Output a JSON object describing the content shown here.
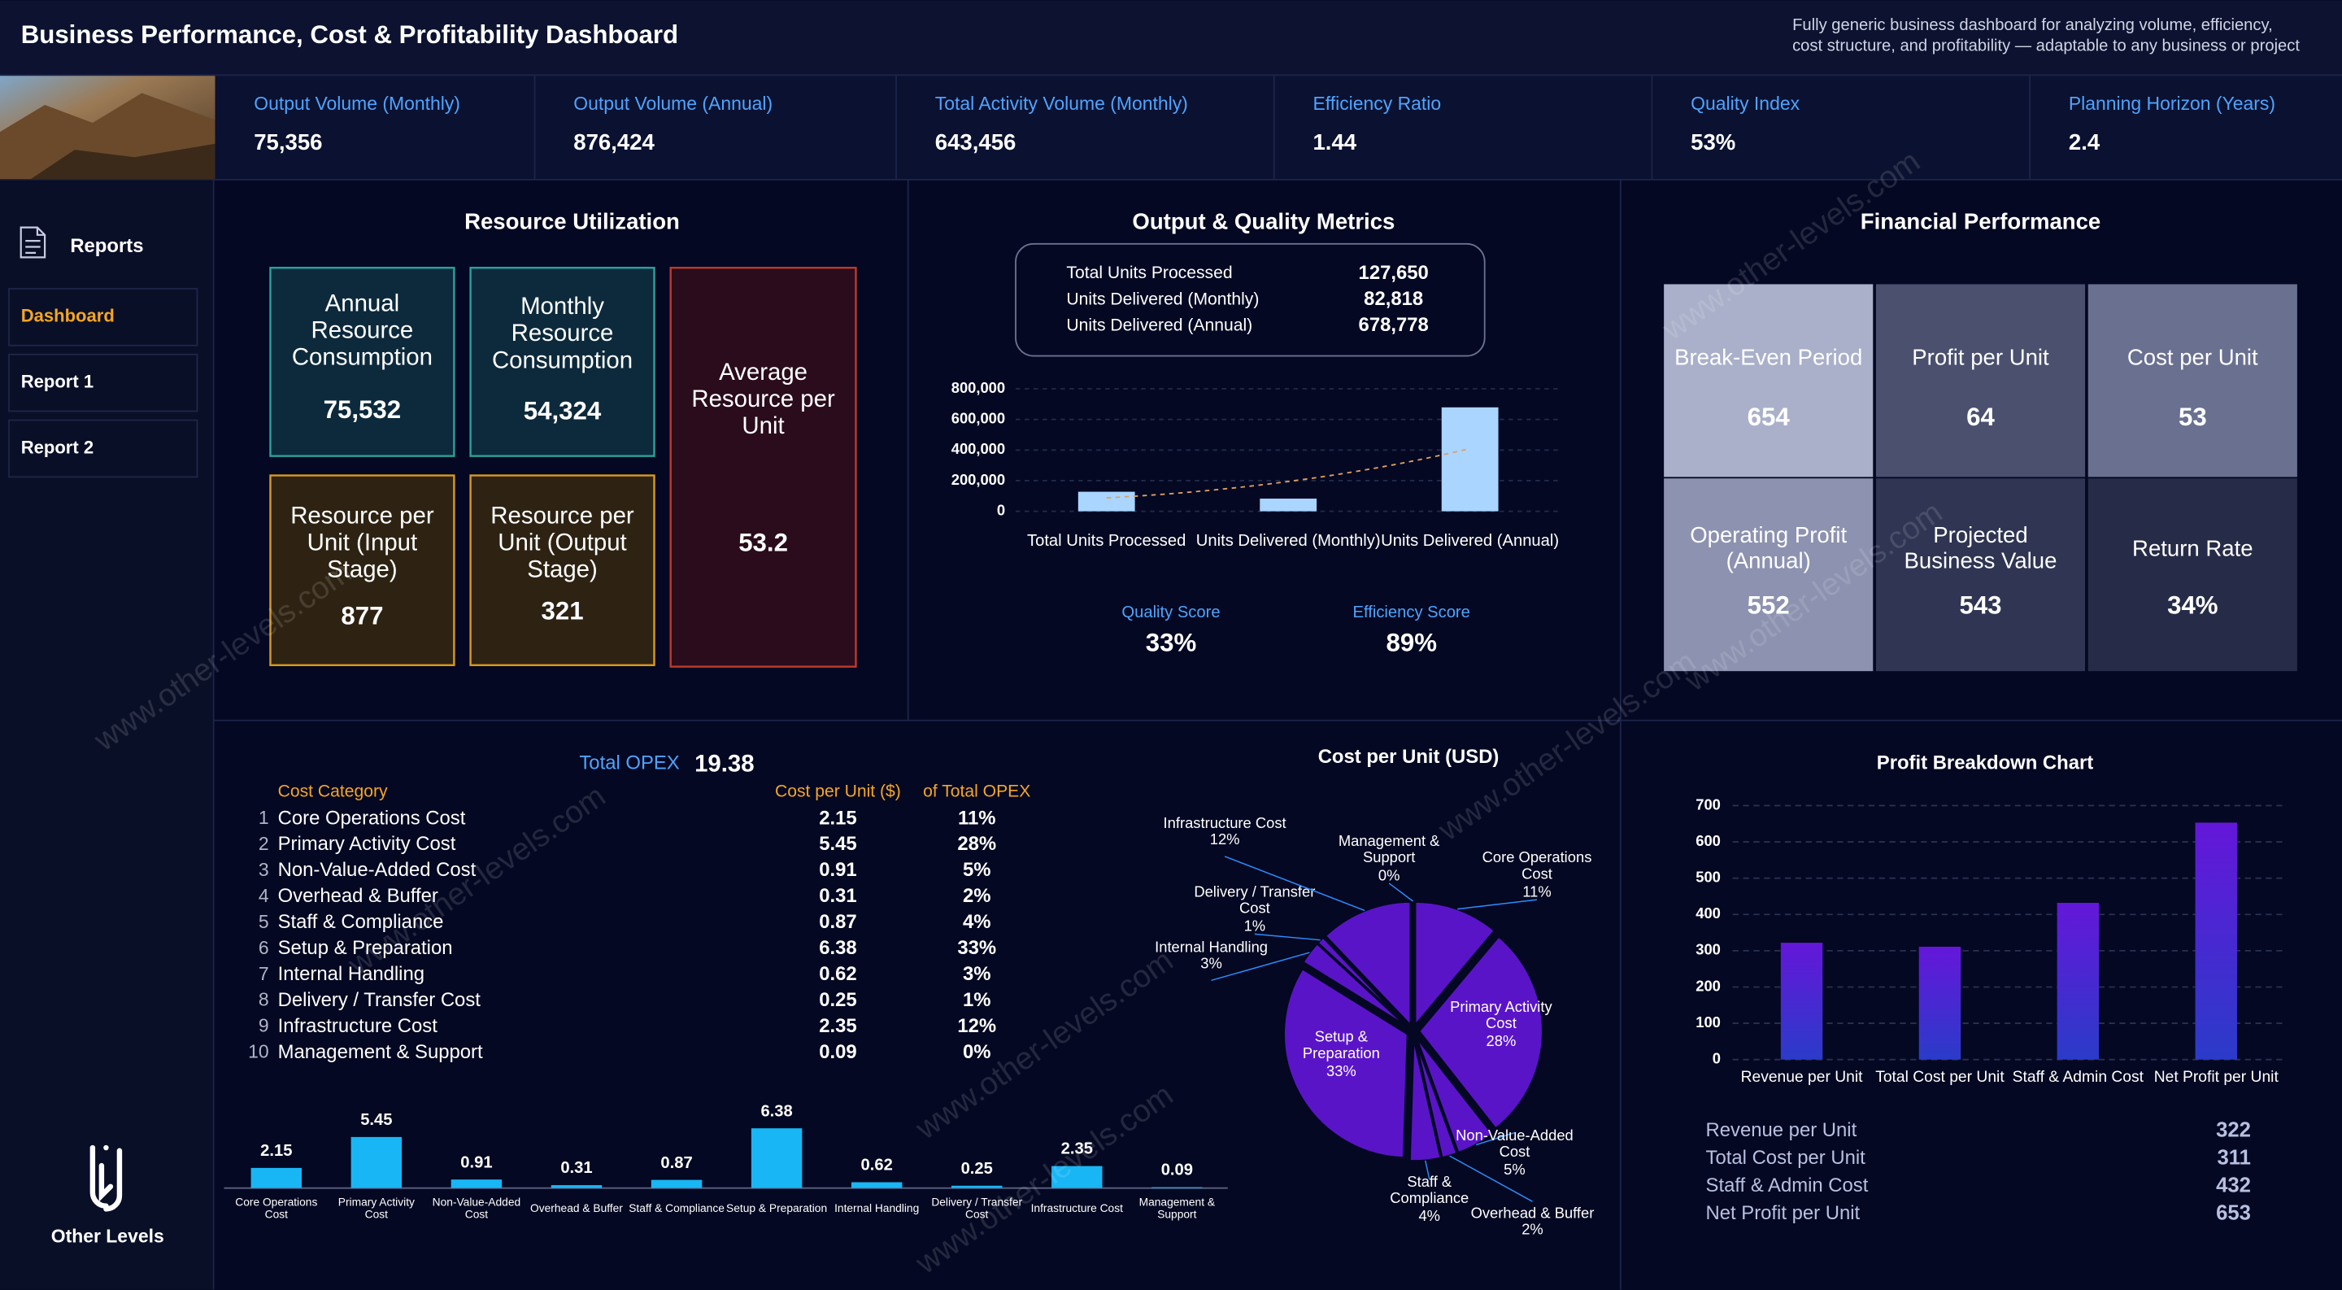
{
  "header": {
    "title": "Business Performance, Cost & Profitability Dashboard",
    "subtitle": [
      "Fully generic business dashboard for analyzing volume, efficiency,",
      "cost structure, and profitability — adaptable to any business or project"
    ]
  },
  "kpis": [
    {
      "label": "Output Volume (Monthly)",
      "value": "75,356"
    },
    {
      "label": "Output Volume (Annual)",
      "value": "876,424"
    },
    {
      "label": "Total Activity Volume (Monthly)",
      "value": "643,456"
    },
    {
      "label": "Efficiency Ratio",
      "value": "1.44"
    },
    {
      "label": "Quality Index",
      "value": "53%"
    },
    {
      "label": "Planning Horizon (Years)",
      "value": "2.4"
    }
  ],
  "sidebar": {
    "title": "Reports",
    "items": [
      "Dashboard",
      "Report 1",
      "Report 2"
    ],
    "brand": "Other Levels"
  },
  "watermark": "www.other-levels.com",
  "resource_utilization": {
    "title": "Resource Utilization",
    "tiles": [
      {
        "label": "Annual Resource Consumption",
        "value": "75,532"
      },
      {
        "label": "Monthly Resource Consumption",
        "value": "54,324"
      },
      {
        "label": "Average Resource per Unit",
        "value": "53.2"
      },
      {
        "label": "Resource per Unit (Input Stage)",
        "value": "877"
      },
      {
        "label": "Resource per Unit (Output Stage)",
        "value": "321"
      }
    ]
  },
  "output_quality": {
    "title": "Output & Quality Metrics",
    "scores": [
      {
        "label": "Quality Score",
        "value": "33%"
      },
      {
        "label": "Efficiency Score",
        "value": "89%"
      }
    ]
  },
  "financial_performance": {
    "title": "Financial Performance",
    "tiles": [
      {
        "label": "Break-Even Period",
        "value": "654"
      },
      {
        "label": "Profit per Unit",
        "value": "64"
      },
      {
        "label": "Cost per Unit",
        "value": "53"
      },
      {
        "label": "Operating Profit (Annual)",
        "value": "552"
      },
      {
        "label": "Projected Business Value",
        "value": "543"
      },
      {
        "label": "Return Rate",
        "value": "34%"
      }
    ]
  },
  "opex_table": {
    "total_label": "Total OPEX",
    "total": "19.38",
    "headers": [
      "Cost Category",
      "Cost per Unit ($)",
      "of Total OPEX"
    ],
    "row_numbers": [
      1,
      2,
      3,
      4,
      5,
      6,
      7,
      8,
      9,
      10
    ]
  },
  "chart_data": [
    {
      "type": "bar",
      "categories": [
        "Total Units Processed",
        "Units Delivered (Monthly)",
        "Units Delivered (Annual)"
      ],
      "values": [
        127650,
        82818,
        678778
      ],
      "value_labels": [
        "127,650",
        "82,818",
        "678,778"
      ],
      "color": "#a9d5ff",
      "trendline": true,
      "grid": true,
      "ylim": [
        0,
        800000
      ],
      "yticks": [
        0,
        {
          "value": 200000,
          "label": "200,000"
        },
        {
          "value": 400000,
          "label": "400,000"
        },
        {
          "value": 600000,
          "label": "600,000"
        },
        {
          "value": 800000,
          "label": "800,000"
        }
      ]
    },
    {
      "type": "bar",
      "categories": [
        "Core Operations Cost",
        "Primary Activity Cost",
        "Non-Value-Added Cost",
        "Overhead & Buffer",
        "Staff & Compliance",
        "Setup & Preparation",
        "Internal Handling",
        "Delivery / Transfer Cost",
        "Infrastructure Cost",
        "Management & Support"
      ],
      "values": [
        2.15,
        5.45,
        0.91,
        0.31,
        0.87,
        6.38,
        0.62,
        0.25,
        2.35,
        0.09
      ],
      "color": "#18b6f4"
    },
    {
      "type": "pie",
      "title": "Cost per Unit (USD)",
      "categories": [
        "Core Operations Cost",
        "Primary Activity Cost",
        "Non-Value-Added Cost",
        "Overhead & Buffer",
        "Staff & Compliance",
        "Setup & Preparation",
        "Internal Handling",
        "Delivery / Transfer Cost",
        "Infrastructure Cost",
        "Management & Support"
      ],
      "values": [
        11,
        28,
        5,
        2,
        4,
        33,
        3,
        1,
        12,
        0
      ],
      "value_labels": [
        "11%",
        "28%",
        "5%",
        "2%",
        "4%",
        "33%",
        "3%",
        "1%",
        "12%",
        "0%"
      ],
      "color": "#5a14c8"
    },
    {
      "type": "bar",
      "title": "Profit Breakdown Chart",
      "categories": [
        "Revenue per Unit",
        "Total Cost per Unit",
        "Staff & Admin Cost",
        "Net Profit per Unit"
      ],
      "values": [
        322,
        311,
        432,
        653
      ],
      "gradient": [
        "#6417d9",
        "#2b3bc9"
      ],
      "grid": true,
      "ylim": [
        0,
        700
      ],
      "yticks": [
        0,
        100,
        200,
        300,
        400,
        500,
        600,
        700
      ]
    }
  ]
}
